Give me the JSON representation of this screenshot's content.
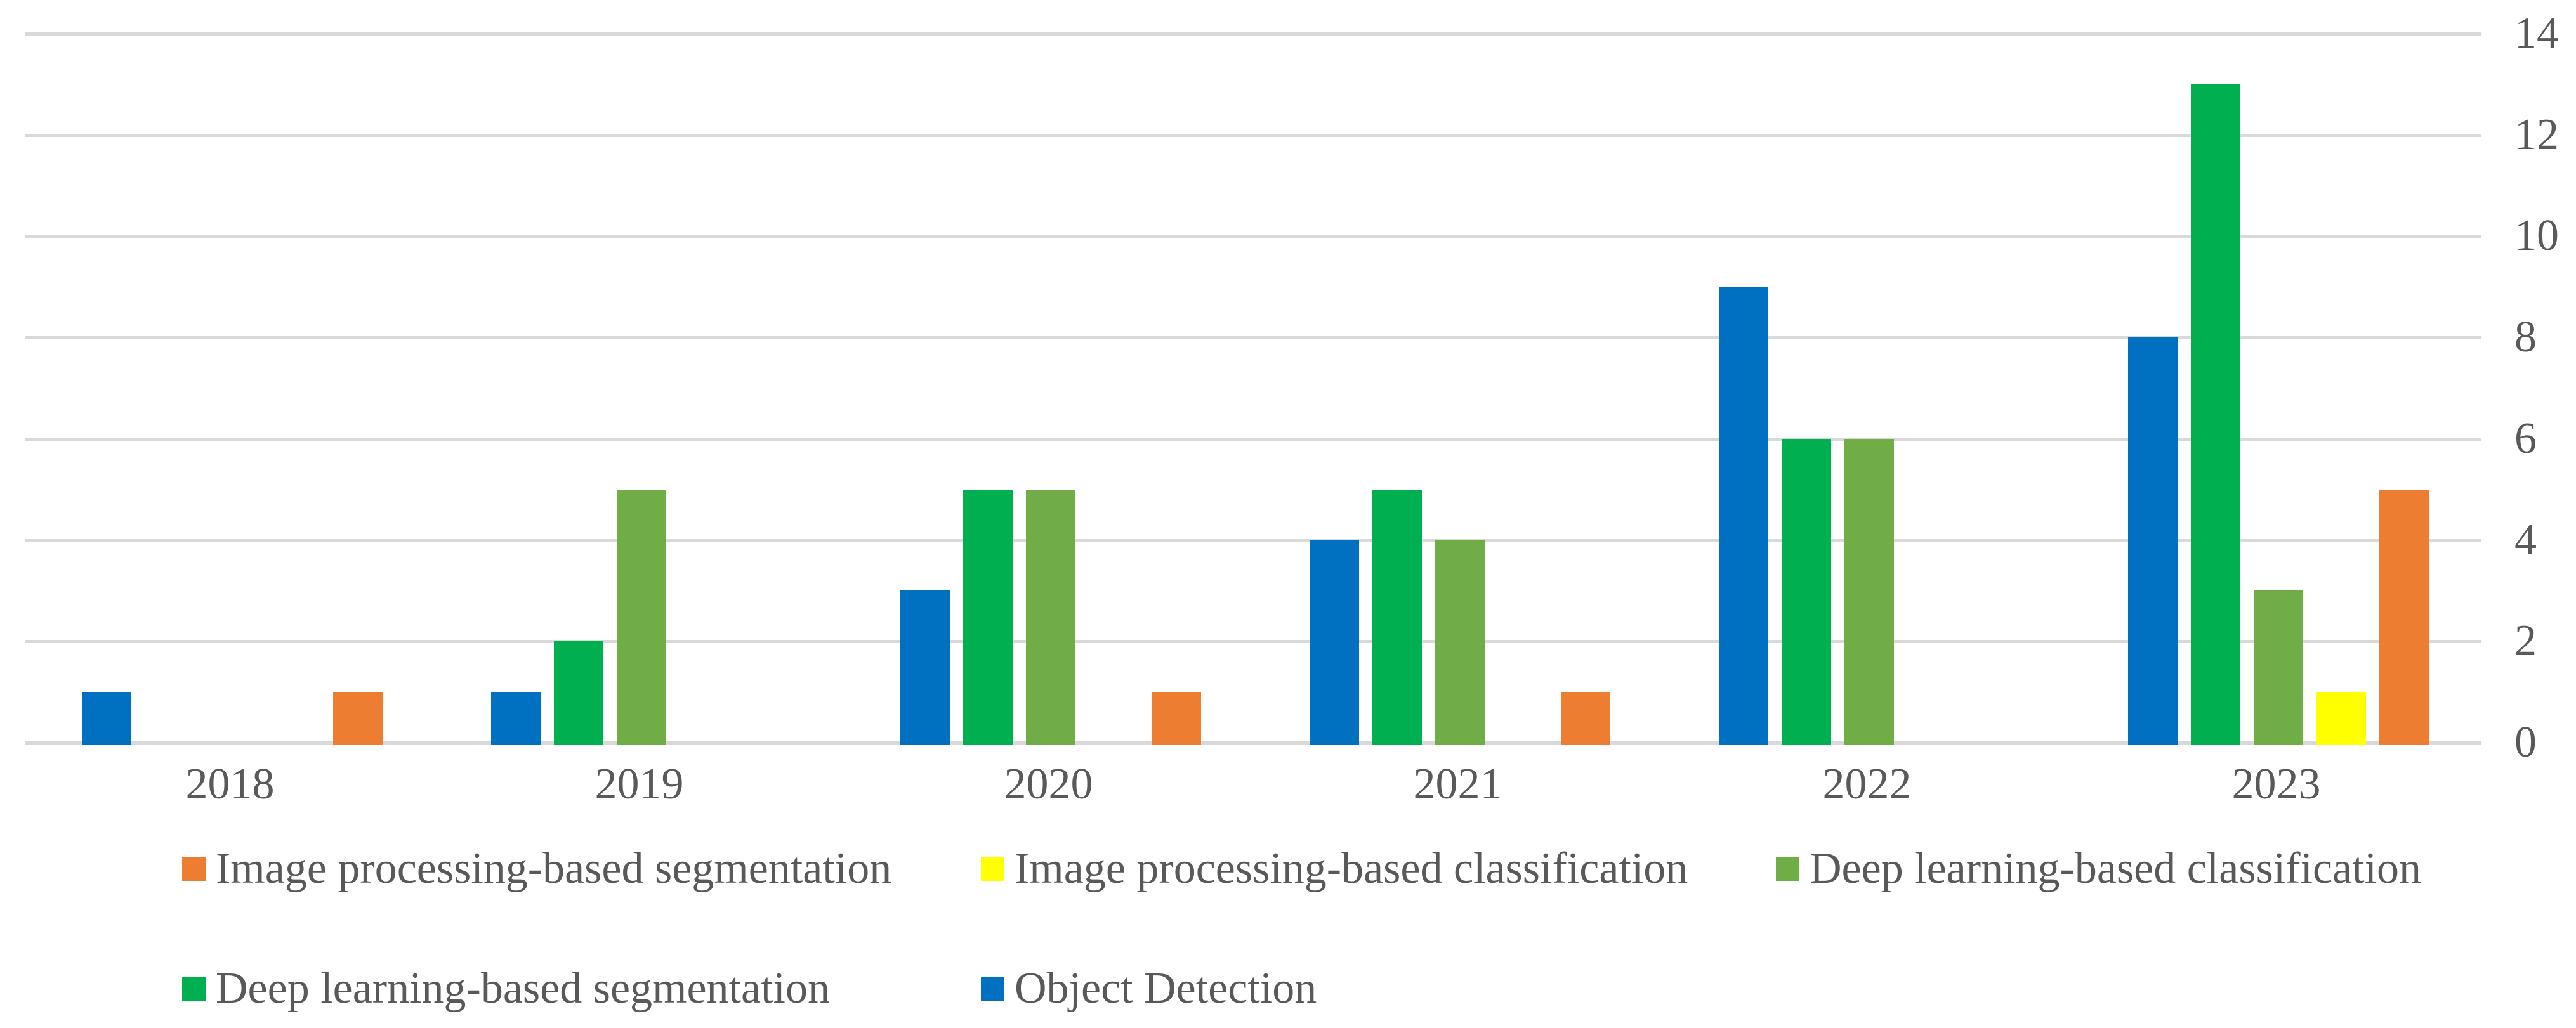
{
  "chart_data": {
    "type": "bar",
    "title": "",
    "xlabel": "",
    "ylabel": "",
    "categories": [
      "2018",
      "2019",
      "2020",
      "2021",
      "2022",
      "2023"
    ],
    "series": [
      {
        "name": "Object Detection",
        "slug": "object-detection",
        "color": "#0070C0",
        "values": [
          1,
          1,
          3,
          4,
          9,
          8
        ]
      },
      {
        "name": "Deep learning-based segmentation",
        "slug": "deep-learning-based-segmentation",
        "color": "#00B050",
        "values": [
          0,
          2,
          5,
          5,
          6,
          13
        ]
      },
      {
        "name": "Deep learning-based classification",
        "slug": "deep-learning-based-classification",
        "color": "#70AD47",
        "values": [
          0,
          5,
          5,
          4,
          6,
          3
        ]
      },
      {
        "name": "Image processing-based classification",
        "slug": "image-processing-based-classification",
        "color": "#FFFF00",
        "values": [
          0,
          0,
          0,
          0,
          0,
          1
        ]
      },
      {
        "name": "Image processing-based segmentation",
        "slug": "image-processing-based-segmentation",
        "color": "#ED7D31",
        "values": [
          1,
          0,
          1,
          1,
          0,
          5
        ]
      }
    ],
    "ylim": [
      0,
      14
    ],
    "yticks": [
      0,
      2,
      4,
      6,
      8,
      10,
      12,
      14
    ],
    "y_axis_side": "right",
    "grid": true,
    "legend_position": "bottom"
  },
  "legend": {
    "rows": [
      {
        "items": [
          {
            "label": "Image processing-based segmentation",
            "color": "#ED7D31",
            "slug": "image-processing-based-segmentation"
          },
          {
            "label": "Image processing-based classification",
            "color": "#FFFF00",
            "slug": "image-processing-based-classification"
          },
          {
            "label": "Deep learning-based classification",
            "color": "#70AD47",
            "slug": "deep-learning-based-classification"
          }
        ]
      },
      {
        "items": [
          {
            "label": "Deep learning-based segmentation",
            "color": "#00B050",
            "slug": "deep-learning-based-segmentation"
          },
          {
            "label": "Object Detection",
            "color": "#0070C0",
            "slug": "object-detection"
          }
        ]
      }
    ]
  },
  "colors": {
    "gridline": "#D9D9D9",
    "axis_text": "#595959",
    "background": "#FFFFFF"
  }
}
